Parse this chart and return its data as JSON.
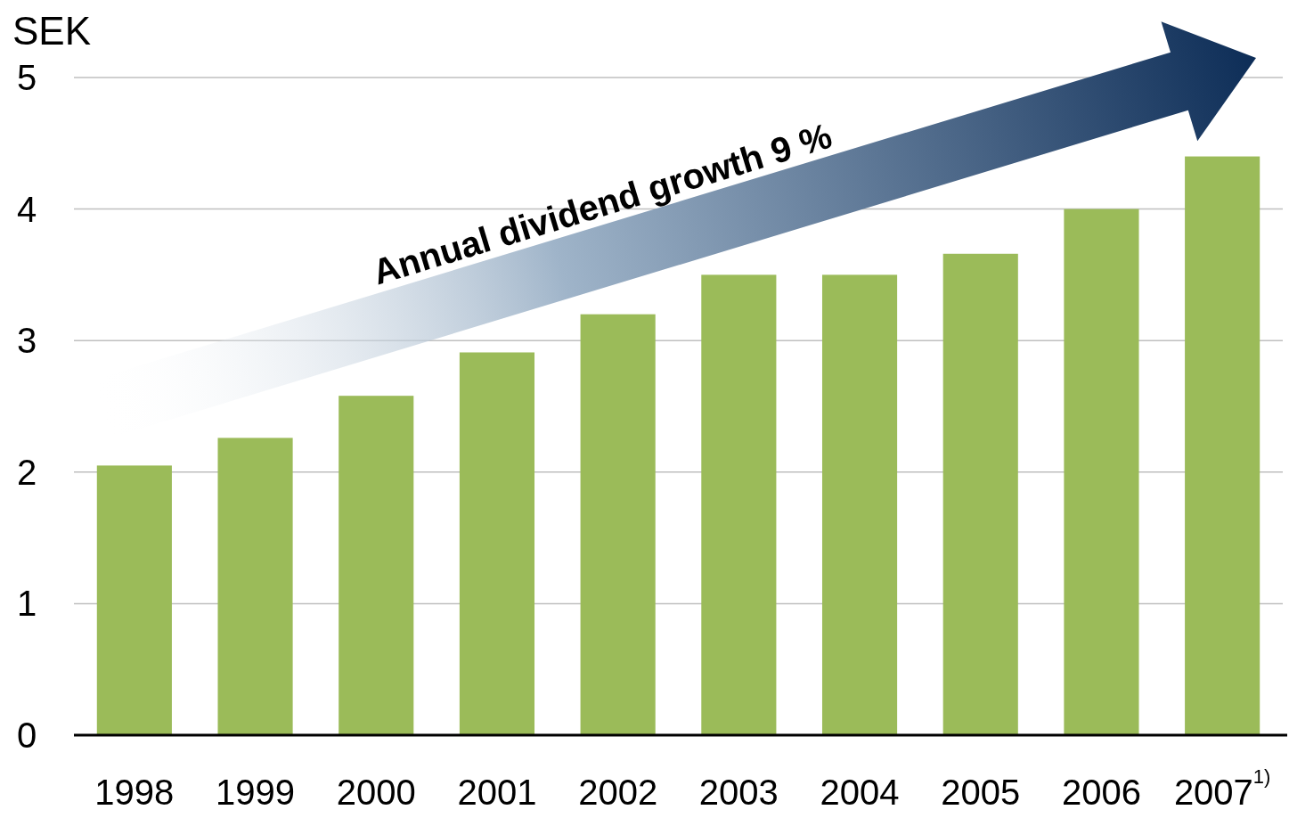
{
  "chart_data": {
    "type": "bar",
    "ylabel": "SEK",
    "categories": [
      "1998",
      "1999",
      "2000",
      "2001",
      "2002",
      "2003",
      "2004",
      "2005",
      "2006",
      "2007$^{1)}$"
    ],
    "values": [
      2.05,
      2.26,
      2.58,
      2.91,
      3.2,
      3.5,
      3.5,
      3.66,
      4.0,
      4.4
    ],
    "color": "#9bbb59",
    "ylim": [
      0,
      5
    ],
    "yticks": [
      0,
      1,
      2,
      3,
      4,
      5
    ],
    "grid": "y",
    "annotations": [
      "Annual dividend growth 9 %"
    ]
  }
}
